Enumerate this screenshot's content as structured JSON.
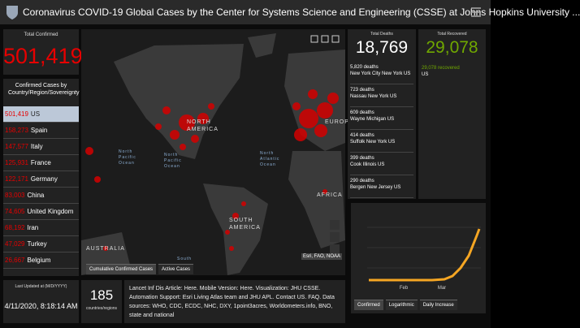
{
  "header": {
    "title": "Coronavirus COVID-19 Global Cases by the Center for Systems Science and Engineering (CSSE) at Johns Hopkins University ..."
  },
  "confirmed": {
    "label": "Total Confirmed",
    "value": "501,419"
  },
  "countries": {
    "heading": "Confirmed Cases by Country/Region/Sovereignty",
    "rows": [
      [
        "501,419",
        "US"
      ],
      [
        "158,273",
        "Spain"
      ],
      [
        "147,577",
        "Italy"
      ],
      [
        "125,931",
        "France"
      ],
      [
        "122,171",
        "Germany"
      ],
      [
        "83,003",
        "China"
      ],
      [
        "74,605",
        "United Kingdom"
      ],
      [
        "68,192",
        "Iran"
      ],
      [
        "47,029",
        "Turkey"
      ],
      [
        "26,667",
        "Belgium"
      ]
    ]
  },
  "updated": {
    "label": "Last Updated at (M/D/YYYY)",
    "value": "4/11/2020, 8:18:14 AM"
  },
  "map": {
    "labels": [
      "NORTH AMERICA",
      "SOUTH AMERICA",
      "EUROPE",
      "AFRICA",
      "AUSTRALIA",
      "North Pacific Ocean",
      "North Pacific Ocean",
      "North Atlantic Ocean",
      "South"
    ],
    "credit": "Esri, FAO, NOAA",
    "tabs": [
      "Cumulative Confirmed Cases",
      "Active Cases"
    ]
  },
  "countries_count": {
    "value": "185",
    "label": "countries/regions"
  },
  "sources": {
    "text": "Lancet Inf Dis Article: Here. Mobile Version: Here. Visualization: JHU CSSE. Automation Support: Esri Living Atlas team and JHU APL. Contact US. FAQ. Data sources: WHO, CDC, ECDC, NHC, DXY, 1point3acres, Worldometers.info, BNO, state and national"
  },
  "deaths": {
    "label": "Total Deaths",
    "value": "18,769",
    "rows": [
      [
        "5,820 deaths",
        "New York City New York US"
      ],
      [
        "723 deaths",
        "Nassau New York US"
      ],
      [
        "609 deaths",
        "Wayne Michigan US"
      ],
      [
        "414 deaths",
        "Suffolk New York US"
      ],
      [
        "399 deaths",
        "Cook Illinois US"
      ],
      [
        "290 deaths",
        "Bergen New Jersey US"
      ]
    ]
  },
  "recovered": {
    "label": "Total Recovered",
    "value": "29,078",
    "detail": "29,078 recovered",
    "region": "US"
  },
  "trend": {
    "xlabels": [
      "Feb",
      "Mar"
    ],
    "tabs": [
      "Confirmed",
      "Logarithmic",
      "Daily Increase"
    ]
  }
}
